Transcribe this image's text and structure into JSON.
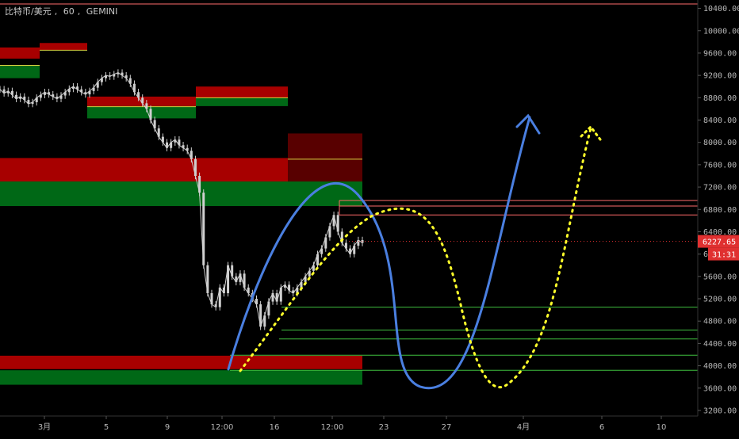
{
  "header": {
    "pair": "比特币/美元",
    "interval": "60",
    "exchange": "GEMINI"
  },
  "colors": {
    "background": "#000000",
    "candle": "#cfcfcf",
    "supply_zone": "#c40000",
    "demand_zone": "#007a1a",
    "resistance_line": "#ff6b6b",
    "support_line": "#3fbf3f",
    "projection_solid": "#4a7fe0",
    "projection_dotted": "#ffff2a",
    "price_badge": "#e03030"
  },
  "chart_data": {
    "type": "line",
    "title": "",
    "xlabel": "",
    "ylabel": "",
    "x_ticks": [
      "3月",
      "5",
      "9",
      "12:00",
      "16",
      "12:00",
      "23",
      "27",
      "4月",
      "6",
      "10"
    ],
    "y_ticks": [
      "3200.00",
      "3600.00",
      "4000.00",
      "4400.00",
      "4800.00",
      "5200.00",
      "5600.00",
      "6000.00",
      "6400.00",
      "6800.00",
      "7200.00",
      "7600.00",
      "8000.00",
      "8400.00",
      "8800.00",
      "9200.00",
      "9600.00",
      "10000.00",
      "10400.00"
    ],
    "ylim": [
      3100,
      10550
    ],
    "last_price": "6227.65",
    "countdown": "31:31",
    "series": [
      {
        "values": [
          8950,
          8880,
          8920,
          8850,
          8780,
          8820,
          8760,
          8690,
          8720,
          8800,
          8850,
          8900,
          8860,
          8820,
          8780,
          8840,
          8900,
          8960,
          9000,
          8950,
          8900,
          8860,
          8920,
          8980,
          9080,
          9150,
          9200,
          9180,
          9220,
          9250,
          9200,
          9150,
          9050,
          8900,
          8800,
          8700,
          8600,
          8400,
          8250,
          8100,
          8000,
          7900,
          8000,
          8050,
          7950,
          7900,
          7850,
          7700,
          7400,
          7100,
          5800,
          5300,
          5100,
          5050,
          5400,
          5300,
          5800,
          5600,
          5500,
          5650,
          5400,
          5300,
          5200,
          5100,
          4700,
          4900,
          5150,
          5300,
          5150,
          5400,
          5450,
          5350,
          5300,
          5400,
          5500,
          5600,
          5700,
          5800,
          6000,
          6100,
          6300,
          6500,
          6700,
          6400,
          6200,
          6100,
          6000,
          6150,
          6250,
          6200
        ]
      }
    ],
    "zones": [
      {
        "kind": "supply",
        "low": 9500,
        "high": 9700
      },
      {
        "kind": "demand",
        "low": 9150,
        "high": 9380
      },
      {
        "kind": "supply",
        "low": 9650,
        "high": 9780
      },
      {
        "kind": "supply",
        "low": 8650,
        "high": 8820
      },
      {
        "kind": "demand",
        "low": 8430,
        "high": 8640
      },
      {
        "kind": "supply",
        "low": 8790,
        "high": 9000
      },
      {
        "kind": "demand",
        "low": 8650,
        "high": 8800
      },
      {
        "kind": "supply",
        "low": 7300,
        "high": 7720
      },
      {
        "kind": "demand",
        "low": 6860,
        "high": 7300
      },
      {
        "kind": "supply",
        "low": 7300,
        "high": 8160
      },
      {
        "kind": "supply",
        "low": 3940,
        "high": 4180
      },
      {
        "kind": "demand",
        "low": 3660,
        "high": 3920
      }
    ],
    "levels": [
      {
        "kind": "resistance",
        "price": 6960
      },
      {
        "kind": "resistance",
        "price": 6860
      },
      {
        "kind": "resistance",
        "price": 6700
      },
      {
        "kind": "support",
        "price": 5050
      },
      {
        "kind": "support",
        "price": 4640
      },
      {
        "kind": "support",
        "price": 4480
      },
      {
        "kind": "support",
        "price": 4190
      },
      {
        "kind": "support",
        "price": 3920
      }
    ]
  }
}
